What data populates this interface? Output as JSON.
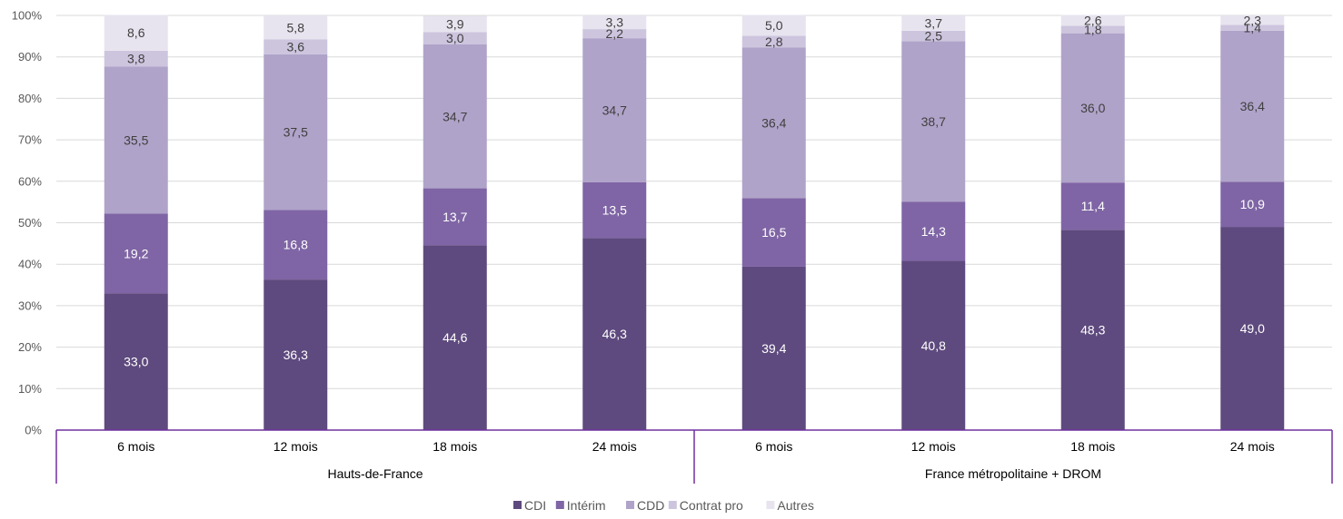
{
  "chart_data": {
    "type": "bar",
    "stacked": true,
    "percent_stacked": true,
    "groups": [
      {
        "label": "Hauts-de-France",
        "categories": [
          "6 mois",
          "12 mois",
          "18 mois",
          "24 mois"
        ]
      },
      {
        "label": "France métropolitaine + DROM",
        "categories": [
          "6 mois",
          "12 mois",
          "18 mois",
          "24 mois"
        ]
      }
    ],
    "series": [
      {
        "name": "CDI",
        "color": "#5e4a7e",
        "label_color": "#ffffff",
        "values": [
          33.0,
          36.3,
          44.6,
          46.3,
          39.4,
          40.8,
          48.3,
          49.0
        ],
        "labels": [
          "33,0",
          "36,3",
          "44,6",
          "46,3",
          "39,4",
          "40,8",
          "48,3",
          "49,0"
        ]
      },
      {
        "name": "Intérim",
        "color": "#7f65a5",
        "label_color": "#ffffff",
        "values": [
          19.2,
          16.8,
          13.7,
          13.5,
          16.5,
          14.3,
          11.4,
          10.9
        ],
        "labels": [
          "19,2",
          "16,8",
          "13,7",
          "13,5",
          "16,5",
          "14,3",
          "11,4",
          "10,9"
        ]
      },
      {
        "name": "CDD",
        "color": "#b0a3c9",
        "label_color": "#3f3f3f",
        "values": [
          35.5,
          37.5,
          34.7,
          34.7,
          36.4,
          38.7,
          36.0,
          36.4
        ],
        "labels": [
          "35,5",
          "37,5",
          "34,7",
          "34,7",
          "36,4",
          "38,7",
          "36,0",
          "36,4"
        ]
      },
      {
        "name": "Contrat pro",
        "color": "#cdc5de",
        "label_color": "#3f3f3f",
        "values": [
          3.8,
          3.6,
          3.0,
          2.2,
          2.8,
          2.5,
          1.8,
          1.4
        ],
        "labels": [
          "3,8",
          "3,6",
          "3,0",
          "2,2",
          "2,8",
          "2,5",
          "1,8",
          "1,4"
        ]
      },
      {
        "name": "Autres",
        "color": "#e8e4ef",
        "label_color": "#3f3f3f",
        "values": [
          8.6,
          5.8,
          3.9,
          3.3,
          5.0,
          3.7,
          2.6,
          2.3
        ],
        "labels": [
          "8,6",
          "5,8",
          "3,9",
          "3,3",
          "5,0",
          "3,7",
          "2,6",
          "2,3"
        ]
      }
    ],
    "y_ticks": [
      "0%",
      "10%",
      "20%",
      "30%",
      "40%",
      "50%",
      "60%",
      "70%",
      "80%",
      "90%",
      "100%"
    ],
    "ylim": [
      0,
      100
    ],
    "grid": true,
    "legend_position": "bottom-center",
    "axis_color": "#7030a0"
  }
}
